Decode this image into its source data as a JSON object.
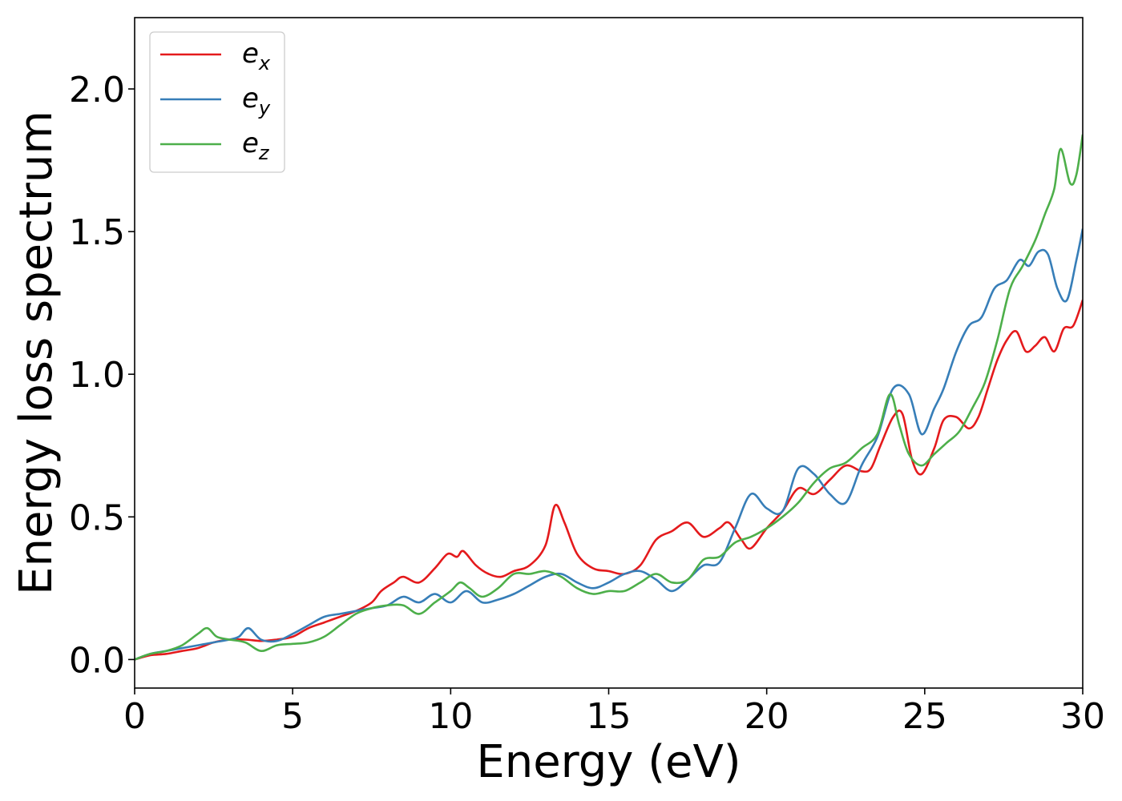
{
  "chart_data": {
    "type": "line",
    "xlabel": "Energy (eV)",
    "ylabel": "Energy loss spectrum",
    "xlim": [
      0,
      30
    ],
    "ylim": [
      -0.1,
      2.25
    ],
    "xticks": [
      0,
      5,
      10,
      15,
      20,
      25,
      30
    ],
    "xtick_labels": [
      "0",
      "5",
      "10",
      "15",
      "20",
      "25",
      "30"
    ],
    "yticks": [
      0.0,
      0.5,
      1.0,
      1.5,
      2.0
    ],
    "ytick_labels": [
      "0.0",
      "0.5",
      "1.0",
      "1.5",
      "2.0"
    ],
    "grid": false,
    "legend_position": "top-left",
    "series": [
      {
        "name": "e_x",
        "legend_base": "e",
        "legend_sub": "x",
        "color": "#e41a1c",
        "x": [
          0,
          0.5,
          1.0,
          1.5,
          2.0,
          2.5,
          3.0,
          3.5,
          4.0,
          4.5,
          5.0,
          5.5,
          6.0,
          6.5,
          7.0,
          7.5,
          7.8,
          8.2,
          8.5,
          9.0,
          9.5,
          9.9,
          10.2,
          10.4,
          10.8,
          11.2,
          11.6,
          12.0,
          12.5,
          13.0,
          13.3,
          13.6,
          14.0,
          14.5,
          15.0,
          15.5,
          16.0,
          16.5,
          17.0,
          17.5,
          18.0,
          18.5,
          18.8,
          19.2,
          19.5,
          20.0,
          20.5,
          21.0,
          21.5,
          22.0,
          22.5,
          23.0,
          23.3,
          23.6,
          24.0,
          24.3,
          24.6,
          24.9,
          25.3,
          25.6,
          26.0,
          26.4,
          26.7,
          27.0,
          27.3,
          27.6,
          27.9,
          28.2,
          28.5,
          28.8,
          29.1,
          29.4,
          29.7,
          30.0
        ],
        "y": [
          0.0,
          0.015,
          0.02,
          0.03,
          0.04,
          0.06,
          0.07,
          0.07,
          0.065,
          0.07,
          0.08,
          0.11,
          0.13,
          0.15,
          0.17,
          0.2,
          0.24,
          0.27,
          0.29,
          0.27,
          0.32,
          0.37,
          0.36,
          0.38,
          0.33,
          0.3,
          0.29,
          0.31,
          0.33,
          0.4,
          0.54,
          0.48,
          0.37,
          0.32,
          0.31,
          0.3,
          0.33,
          0.42,
          0.45,
          0.48,
          0.43,
          0.46,
          0.48,
          0.42,
          0.39,
          0.46,
          0.52,
          0.6,
          0.58,
          0.63,
          0.68,
          0.66,
          0.67,
          0.75,
          0.85,
          0.86,
          0.7,
          0.65,
          0.74,
          0.84,
          0.85,
          0.81,
          0.85,
          0.95,
          1.05,
          1.12,
          1.15,
          1.08,
          1.1,
          1.13,
          1.08,
          1.16,
          1.17,
          1.26
        ]
      },
      {
        "name": "e_y",
        "legend_base": "e",
        "legend_sub": "y",
        "color": "#377eb8",
        "x": [
          0,
          0.5,
          1.0,
          1.5,
          2.0,
          2.5,
          3.0,
          3.3,
          3.6,
          4.0,
          4.5,
          5.0,
          5.5,
          6.0,
          6.5,
          7.0,
          7.5,
          8.0,
          8.5,
          9.0,
          9.5,
          10.0,
          10.5,
          11.0,
          11.5,
          12.0,
          12.5,
          13.0,
          13.5,
          14.0,
          14.5,
          15.0,
          15.5,
          16.0,
          16.5,
          17.0,
          17.5,
          18.0,
          18.5,
          19.0,
          19.5,
          20.0,
          20.5,
          21.0,
          21.5,
          22.0,
          22.5,
          23.0,
          23.5,
          24.0,
          24.5,
          24.9,
          25.3,
          25.6,
          26.0,
          26.4,
          26.8,
          27.2,
          27.6,
          28.0,
          28.3,
          28.6,
          28.9,
          29.2,
          29.5,
          29.8,
          30.0
        ],
        "y": [
          0.0,
          0.02,
          0.03,
          0.04,
          0.05,
          0.06,
          0.07,
          0.08,
          0.11,
          0.07,
          0.065,
          0.09,
          0.12,
          0.15,
          0.16,
          0.17,
          0.18,
          0.19,
          0.22,
          0.2,
          0.23,
          0.2,
          0.24,
          0.2,
          0.21,
          0.23,
          0.26,
          0.29,
          0.3,
          0.27,
          0.25,
          0.27,
          0.3,
          0.31,
          0.28,
          0.24,
          0.28,
          0.33,
          0.34,
          0.46,
          0.58,
          0.53,
          0.52,
          0.67,
          0.65,
          0.58,
          0.55,
          0.68,
          0.78,
          0.95,
          0.93,
          0.79,
          0.88,
          0.95,
          1.08,
          1.17,
          1.2,
          1.3,
          1.33,
          1.4,
          1.38,
          1.43,
          1.42,
          1.3,
          1.26,
          1.4,
          1.51
        ]
      },
      {
        "name": "e_z",
        "legend_base": "e",
        "legend_sub": "z",
        "color": "#4daf4a",
        "x": [
          0,
          0.5,
          1.0,
          1.5,
          2.0,
          2.3,
          2.6,
          3.0,
          3.5,
          4.0,
          4.5,
          5.0,
          5.5,
          6.0,
          6.5,
          7.0,
          7.5,
          8.0,
          8.5,
          9.0,
          9.5,
          10.0,
          10.3,
          10.6,
          11.0,
          11.5,
          12.0,
          12.5,
          13.0,
          13.5,
          14.0,
          14.5,
          15.0,
          15.5,
          16.0,
          16.5,
          17.0,
          17.5,
          18.0,
          18.5,
          19.0,
          19.5,
          20.0,
          20.5,
          21.0,
          21.5,
          22.0,
          22.5,
          23.0,
          23.5,
          23.9,
          24.2,
          24.5,
          24.9,
          25.3,
          25.7,
          26.1,
          26.5,
          26.9,
          27.3,
          27.7,
          28.1,
          28.5,
          28.8,
          29.1,
          29.3,
          29.6,
          29.8,
          30.0
        ],
        "y": [
          0.0,
          0.02,
          0.03,
          0.05,
          0.09,
          0.11,
          0.08,
          0.07,
          0.06,
          0.03,
          0.05,
          0.055,
          0.06,
          0.08,
          0.12,
          0.16,
          0.18,
          0.19,
          0.19,
          0.16,
          0.2,
          0.24,
          0.27,
          0.25,
          0.22,
          0.25,
          0.3,
          0.3,
          0.31,
          0.29,
          0.25,
          0.23,
          0.24,
          0.24,
          0.27,
          0.3,
          0.27,
          0.28,
          0.35,
          0.36,
          0.41,
          0.43,
          0.46,
          0.5,
          0.55,
          0.62,
          0.67,
          0.69,
          0.74,
          0.79,
          0.93,
          0.82,
          0.72,
          0.68,
          0.72,
          0.76,
          0.8,
          0.88,
          0.97,
          1.12,
          1.3,
          1.38,
          1.47,
          1.56,
          1.65,
          1.79,
          1.67,
          1.7,
          1.84
        ]
      }
    ]
  }
}
